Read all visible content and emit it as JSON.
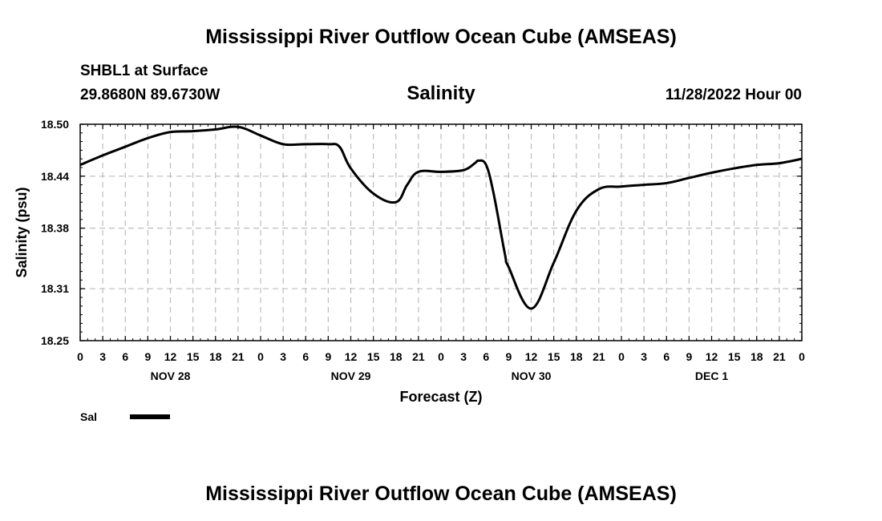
{
  "header": {
    "title": "Mississippi River Outflow Ocean Cube (AMSEAS)",
    "station": "SHBL1 at Surface",
    "coords": "29.8680N  89.6730W",
    "variable": "Salinity",
    "datetime": "11/28/2022 Hour 00"
  },
  "footer": {
    "title": "Mississippi River Outflow Ocean Cube (AMSEAS)"
  },
  "legend": {
    "label": "Sal"
  },
  "colors": {
    "line": "#000000",
    "grid": "#bdbdbd"
  },
  "chart_data": {
    "type": "line",
    "title": "Salinity",
    "xlabel": "Forecast (Z)",
    "ylabel": "Salinity (psu)",
    "xlim": [
      0,
      96
    ],
    "ylim": [
      18.25,
      18.5
    ],
    "yticks": [
      "18.50",
      "18.44",
      "18.38",
      "18.31",
      "18.25"
    ],
    "ytick_values": [
      18.5,
      18.44,
      18.38,
      18.31,
      18.25
    ],
    "xtick_labels": [
      "0",
      "3",
      "6",
      "9",
      "12",
      "15",
      "18",
      "21",
      "0",
      "3",
      "6",
      "9",
      "12",
      "15",
      "18",
      "21",
      "0",
      "3",
      "6",
      "9",
      "12",
      "15",
      "18",
      "21",
      "0",
      "3",
      "6",
      "9",
      "12",
      "15",
      "18",
      "21",
      "0"
    ],
    "day_labels": [
      {
        "label": "NOV 28",
        "hour": 12
      },
      {
        "label": "NOV 29",
        "hour": 36
      },
      {
        "label": "NOV 30",
        "hour": 60
      },
      {
        "label": "DEC 1",
        "hour": 84
      }
    ],
    "grid": true,
    "series": [
      {
        "name": "Sal",
        "x": [
          0,
          3,
          6,
          9,
          12,
          15,
          18,
          21,
          24,
          27,
          30,
          33,
          34.5,
          36,
          39,
          42,
          43.5,
          45,
          48,
          51,
          52.5,
          53,
          54,
          55,
          56.5,
          57,
          60,
          63,
          66,
          69,
          72,
          75,
          78,
          81,
          84,
          87,
          90,
          93,
          96
        ],
        "values": [
          18.453,
          18.464,
          18.474,
          18.484,
          18.491,
          18.492,
          18.494,
          18.497,
          18.487,
          18.477,
          18.477,
          18.477,
          18.474,
          18.449,
          18.42,
          18.41,
          18.43,
          18.445,
          18.445,
          18.447,
          18.455,
          18.458,
          18.453,
          18.42,
          18.35,
          18.335,
          18.287,
          18.34,
          18.4,
          18.425,
          18.428,
          18.43,
          18.432,
          18.438,
          18.444,
          18.449,
          18.453,
          18.455,
          18.46
        ]
      }
    ]
  }
}
